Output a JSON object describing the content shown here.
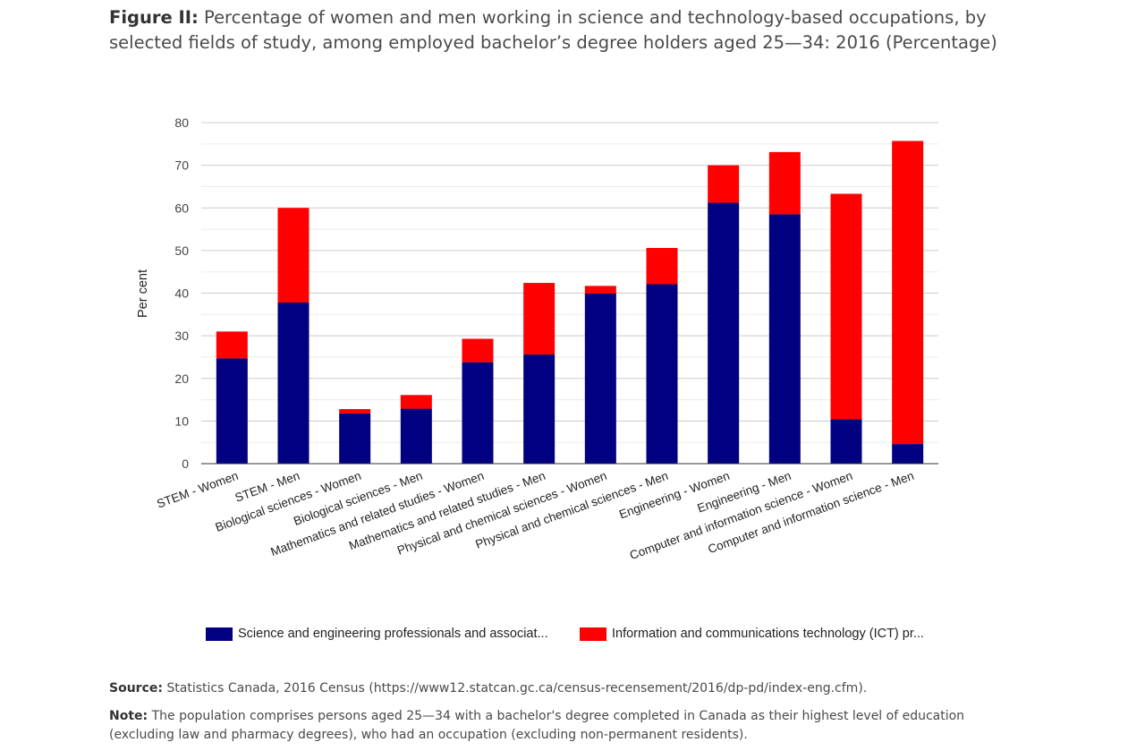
{
  "header": {
    "figure_label": "Figure II:",
    "title_text": "Percentage of women and men working in science and technology-based occupations, by selected fields of study, among employed bachelor’s degree holders aged 25—34: 2016 (Percentage)"
  },
  "chart_data": {
    "type": "bar",
    "stacked": true,
    "title": "",
    "xlabel": "",
    "ylabel": "Per cent",
    "ylim": [
      0,
      80
    ],
    "yticks": [
      0,
      10,
      20,
      30,
      40,
      50,
      60,
      70,
      80
    ],
    "grid": true,
    "legend_position": "bottom",
    "categories": [
      "STEM - Women",
      "STEM - Men",
      "Biological sciences - Women",
      "Biological sciences - Men",
      "Mathematics and related studies - Women",
      "Mathematics and related studies - Men",
      "Physical and chemical sciences - Women",
      "Physical and chemical sciences - Men",
      "Engineering - Women",
      "Engineering - Men",
      "Computer and information science - Women",
      "Computer and information science - Men"
    ],
    "series": [
      {
        "name": "Science and engineering professionals and associat...",
        "color": "#000080",
        "values": [
          24.7,
          37.8,
          11.8,
          12.9,
          23.8,
          25.6,
          39.9,
          42.1,
          61.2,
          58.5,
          10.4,
          4.6
        ]
      },
      {
        "name": "Information and communications technology (ICT) pr...",
        "color": "#ff0000",
        "values": [
          6.3,
          22.2,
          1.0,
          3.2,
          5.5,
          16.8,
          1.8,
          8.5,
          8.8,
          14.6,
          52.9,
          71.1
        ]
      }
    ]
  },
  "source": {
    "label": "Source:",
    "text": "Statistics Canada, 2016 Census (https://www12.statcan.gc.ca/census-recensement/2016/dp-pd/index-eng.cfm)."
  },
  "note": {
    "label": "Note:",
    "text": "The population comprises persons aged 25—34 with a bachelor's degree completed in Canada as their highest level of education (excluding law and pharmacy degrees), who had an occupation (excluding non-permanent residents)."
  }
}
